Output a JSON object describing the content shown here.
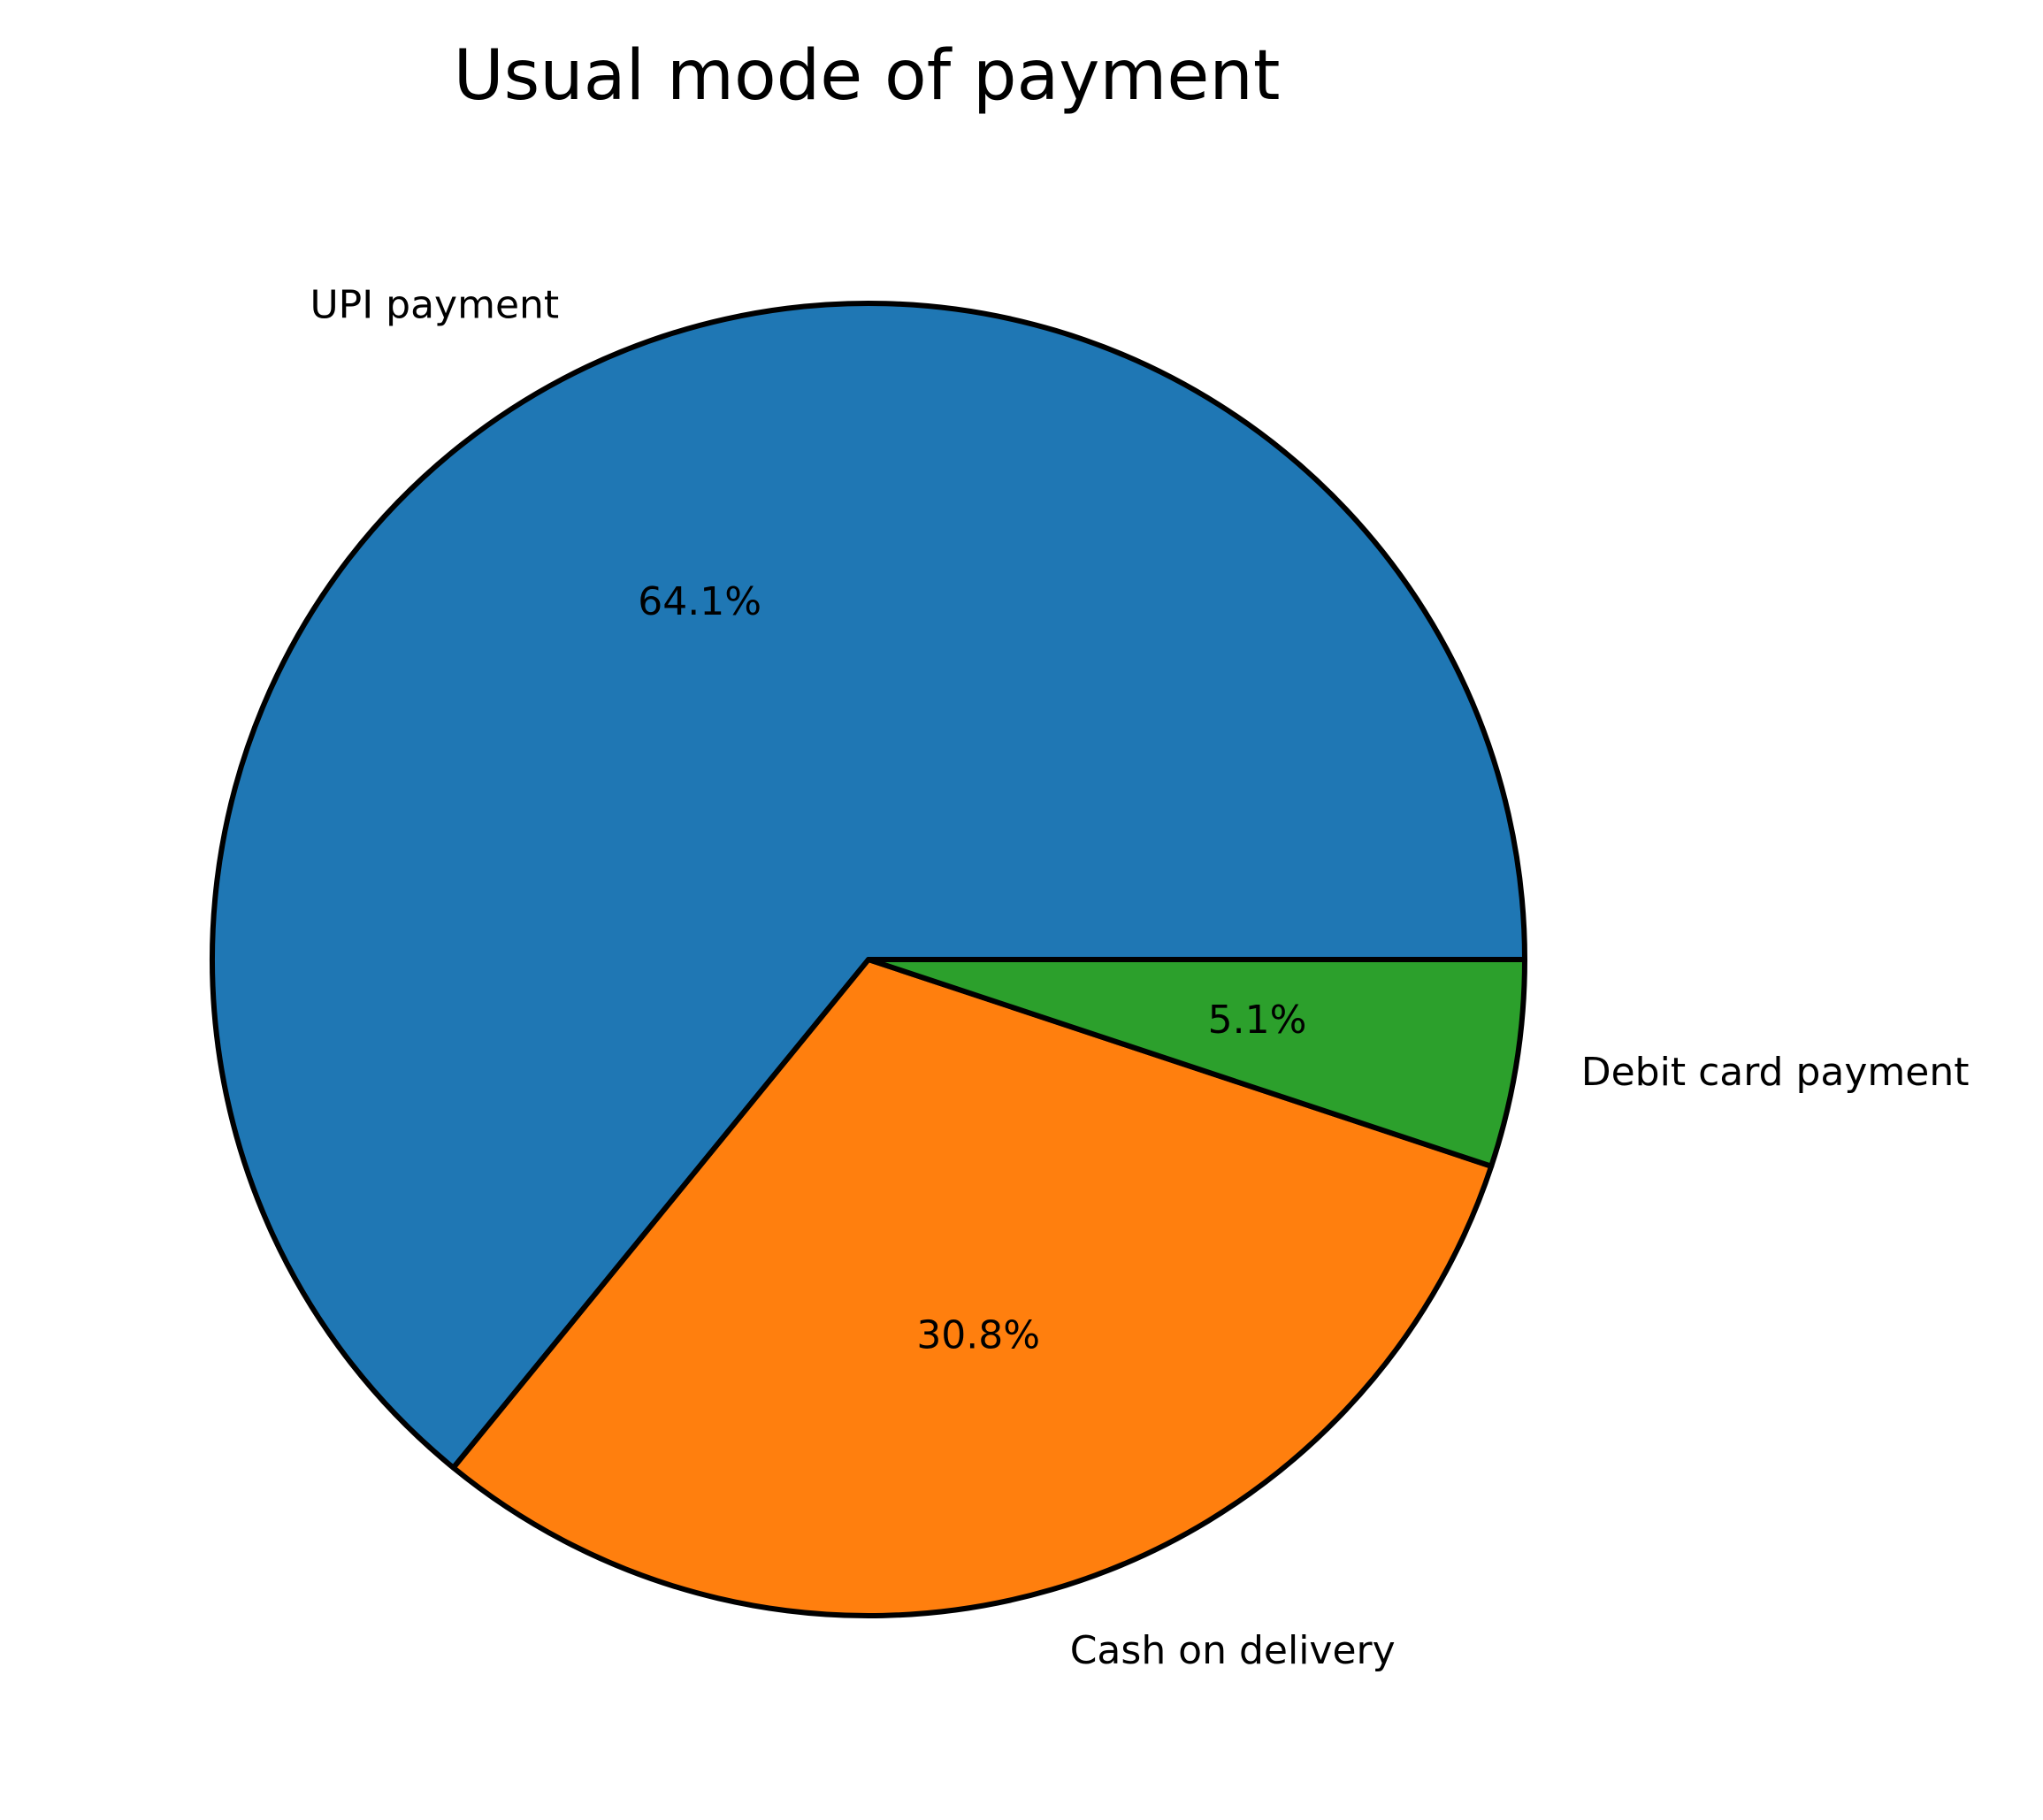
{
  "chart_data": {
    "type": "pie",
    "title": "Usual mode of payment",
    "slices": [
      {
        "label": "UPI payment",
        "value": 64.1,
        "pct_label": "64.1%",
        "color": "#1f77b4"
      },
      {
        "label": "Cash on delivery",
        "value": 30.8,
        "pct_label": "30.8%",
        "color": "#ff7f0e"
      },
      {
        "label": "Debit card payment",
        "value": 5.1,
        "pct_label": "5.1%",
        "color": "#2ca02c"
      }
    ],
    "start_angle_deg": 0,
    "direction": "counterclockwise",
    "edge_color": "#000000"
  }
}
